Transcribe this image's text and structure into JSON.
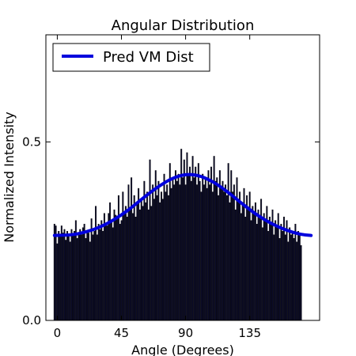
{
  "chart_data": {
    "type": "bar",
    "title": "Angular Distribution",
    "xlabel": "Angle (Degrees)",
    "ylabel": "Normalized Intensity",
    "xlim": [
      -8,
      184
    ],
    "ylim": [
      0.0,
      0.8
    ],
    "xticks": [
      0,
      45,
      90,
      135
    ],
    "xtick_labels": [
      "0",
      "45",
      "90",
      "135"
    ],
    "yticks": [
      0.0,
      0.5
    ],
    "ytick_labels": [
      "0.0",
      "0.5"
    ],
    "grid": false,
    "legend": {
      "position": "top-left",
      "entries": [
        "Pred VM Dist"
      ]
    },
    "bar_color": "#0a0a2a",
    "line_color": "#0000dd",
    "bars": {
      "angle_start": -2,
      "angle_step": 1,
      "values": [
        0.27,
        0.265,
        0.215,
        0.25,
        0.235,
        0.265,
        0.245,
        0.255,
        0.225,
        0.25,
        0.235,
        0.22,
        0.255,
        0.24,
        0.25,
        0.28,
        0.23,
        0.245,
        0.255,
        0.24,
        0.26,
        0.27,
        0.23,
        0.25,
        0.245,
        0.22,
        0.285,
        0.24,
        0.25,
        0.32,
        0.24,
        0.27,
        0.255,
        0.28,
        0.25,
        0.3,
        0.27,
        0.265,
        0.3,
        0.33,
        0.28,
        0.26,
        0.31,
        0.295,
        0.29,
        0.35,
        0.27,
        0.28,
        0.36,
        0.3,
        0.32,
        0.29,
        0.38,
        0.31,
        0.4,
        0.3,
        0.35,
        0.29,
        0.33,
        0.37,
        0.31,
        0.34,
        0.32,
        0.39,
        0.33,
        0.36,
        0.31,
        0.45,
        0.32,
        0.38,
        0.34,
        0.42,
        0.35,
        0.39,
        0.33,
        0.36,
        0.34,
        0.41,
        0.36,
        0.38,
        0.35,
        0.44,
        0.37,
        0.4,
        0.38,
        0.42,
        0.39,
        0.41,
        0.38,
        0.48,
        0.4,
        0.45,
        0.38,
        0.47,
        0.41,
        0.43,
        0.39,
        0.46,
        0.4,
        0.43,
        0.38,
        0.44,
        0.39,
        0.36,
        0.41,
        0.38,
        0.4,
        0.37,
        0.42,
        0.38,
        0.43,
        0.36,
        0.46,
        0.39,
        0.4,
        0.35,
        0.42,
        0.37,
        0.39,
        0.36,
        0.38,
        0.35,
        0.44,
        0.33,
        0.42,
        0.36,
        0.38,
        0.31,
        0.4,
        0.34,
        0.36,
        0.3,
        0.33,
        0.37,
        0.29,
        0.35,
        0.31,
        0.36,
        0.28,
        0.32,
        0.3,
        0.33,
        0.27,
        0.31,
        0.29,
        0.34,
        0.26,
        0.3,
        0.28,
        0.32,
        0.25,
        0.29,
        0.27,
        0.31,
        0.24,
        0.28,
        0.26,
        0.3,
        0.23,
        0.27,
        0.25,
        0.29,
        0.24,
        0.28,
        0.22,
        0.26,
        0.24,
        0.25,
        0.23,
        0.27,
        0.22,
        0.25,
        0.24,
        0.21
      ]
    },
    "series": [
      {
        "name": "Pred VM Dist",
        "type": "line",
        "x": [
          -2,
          10,
          20,
          30,
          40,
          50,
          60,
          70,
          80,
          90,
          100,
          110,
          120,
          130,
          140,
          150,
          160,
          170,
          178
        ],
        "y": [
          0.238,
          0.24,
          0.248,
          0.262,
          0.283,
          0.31,
          0.342,
          0.372,
          0.396,
          0.408,
          0.404,
          0.386,
          0.358,
          0.326,
          0.296,
          0.272,
          0.254,
          0.242,
          0.238
        ]
      }
    ]
  }
}
